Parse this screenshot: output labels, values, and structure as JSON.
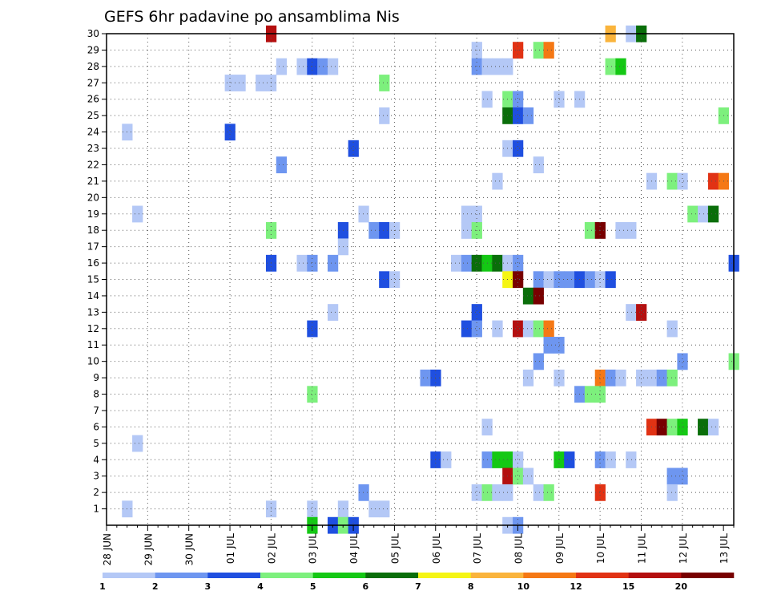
{
  "chart_data": {
    "type": "heatmap",
    "title": "GEFS 6hr padavine po ansamblima Nis",
    "xlabel": "",
    "ylabel": "",
    "x_tick_labels": [
      "28 JUN",
      "29 JUN",
      "30 JUN",
      "01 JUL",
      "02 JUL",
      "03 JUL",
      "04 JUL",
      "05 JUL",
      "06 JUL",
      "07 JUL",
      "08 JUL",
      "09 JUL",
      "10 JUL",
      "11 JUL",
      "12 JUL",
      "13 JUL"
    ],
    "x_range_hours": [
      0,
      366
    ],
    "x_step_hours": 6,
    "y_tick_labels": [
      "1",
      "2",
      "3",
      "4",
      "5",
      "6",
      "7",
      "8",
      "9",
      "10",
      "11",
      "12",
      "13",
      "14",
      "15",
      "16",
      "17",
      "18",
      "19",
      "20",
      "21",
      "22",
      "23",
      "24",
      "25",
      "26",
      "27",
      "28",
      "29",
      "30"
    ],
    "ylim": [
      0,
      30
    ],
    "grid": true,
    "color_levels": [
      1,
      2,
      3,
      4,
      5,
      6,
      7,
      8,
      10,
      12,
      15,
      20
    ],
    "colorbar_labels": [
      "1",
      "2",
      "3",
      "4",
      "5",
      "6",
      "7",
      "8",
      "10",
      "12",
      "15",
      "20"
    ],
    "color_palette": [
      "#b4c8f6",
      "#6e96f0",
      "#1f4fe0",
      "#7df07d",
      "#14c814",
      "#0a6e0a",
      "#f5f514",
      "#fab43c",
      "#f57814",
      "#e13214",
      "#b40f0f",
      "#780000"
    ],
    "cells": [
      {
        "x": 96,
        "y": 30,
        "v": 15
      },
      {
        "x": 294,
        "y": 30,
        "v": 8
      },
      {
        "x": 306,
        "y": 30,
        "v": 1
      },
      {
        "x": 312,
        "y": 30,
        "v": 6
      },
      {
        "x": 216,
        "y": 29,
        "v": 1
      },
      {
        "x": 240,
        "y": 29,
        "v": 12
      },
      {
        "x": 252,
        "y": 29,
        "v": 4
      },
      {
        "x": 258,
        "y": 29,
        "v": 10
      },
      {
        "x": 102,
        "y": 28,
        "v": 1
      },
      {
        "x": 114,
        "y": 28,
        "v": 1
      },
      {
        "x": 120,
        "y": 28,
        "v": 3
      },
      {
        "x": 126,
        "y": 28,
        "v": 2
      },
      {
        "x": 132,
        "y": 28,
        "v": 1
      },
      {
        "x": 216,
        "y": 28,
        "v": 2
      },
      {
        "x": 222,
        "y": 28,
        "v": 1
      },
      {
        "x": 228,
        "y": 28,
        "v": 1
      },
      {
        "x": 234,
        "y": 28,
        "v": 1
      },
      {
        "x": 294,
        "y": 28,
        "v": 4
      },
      {
        "x": 300,
        "y": 28,
        "v": 5
      },
      {
        "x": 72,
        "y": 27,
        "v": 1
      },
      {
        "x": 78,
        "y": 27,
        "v": 1
      },
      {
        "x": 90,
        "y": 27,
        "v": 1
      },
      {
        "x": 96,
        "y": 27,
        "v": 1
      },
      {
        "x": 162,
        "y": 27,
        "v": 4
      },
      {
        "x": 222,
        "y": 26,
        "v": 1
      },
      {
        "x": 234,
        "y": 26,
        "v": 4
      },
      {
        "x": 240,
        "y": 26,
        "v": 2
      },
      {
        "x": 264,
        "y": 26,
        "v": 1
      },
      {
        "x": 276,
        "y": 26,
        "v": 1
      },
      {
        "x": 162,
        "y": 25,
        "v": 1
      },
      {
        "x": 234,
        "y": 25,
        "v": 6
      },
      {
        "x": 240,
        "y": 25,
        "v": 3
      },
      {
        "x": 246,
        "y": 25,
        "v": 2
      },
      {
        "x": 360,
        "y": 25,
        "v": 4
      },
      {
        "x": 12,
        "y": 24,
        "v": 1
      },
      {
        "x": 72,
        "y": 24,
        "v": 3
      },
      {
        "x": 144,
        "y": 23,
        "v": 3
      },
      {
        "x": 234,
        "y": 23,
        "v": 1
      },
      {
        "x": 240,
        "y": 23,
        "v": 3
      },
      {
        "x": 102,
        "y": 22,
        "v": 2
      },
      {
        "x": 252,
        "y": 22,
        "v": 1
      },
      {
        "x": 228,
        "y": 21,
        "v": 1
      },
      {
        "x": 318,
        "y": 21,
        "v": 1
      },
      {
        "x": 330,
        "y": 21,
        "v": 4
      },
      {
        "x": 336,
        "y": 21,
        "v": 1
      },
      {
        "x": 354,
        "y": 21,
        "v": 14
      },
      {
        "x": 360,
        "y": 21,
        "v": 10
      },
      {
        "x": 18,
        "y": 19,
        "v": 1
      },
      {
        "x": 150,
        "y": 19,
        "v": 1
      },
      {
        "x": 210,
        "y": 19,
        "v": 1
      },
      {
        "x": 216,
        "y": 19,
        "v": 1
      },
      {
        "x": 342,
        "y": 19,
        "v": 4
      },
      {
        "x": 348,
        "y": 19,
        "v": 1
      },
      {
        "x": 354,
        "y": 19,
        "v": 6
      },
      {
        "x": 96,
        "y": 18,
        "v": 4
      },
      {
        "x": 138,
        "y": 18,
        "v": 3
      },
      {
        "x": 156,
        "y": 18,
        "v": 2
      },
      {
        "x": 162,
        "y": 18,
        "v": 3
      },
      {
        "x": 168,
        "y": 18,
        "v": 1
      },
      {
        "x": 210,
        "y": 18,
        "v": 1
      },
      {
        "x": 216,
        "y": 18,
        "v": 4
      },
      {
        "x": 282,
        "y": 18,
        "v": 4
      },
      {
        "x": 288,
        "y": 18,
        "v": 20
      },
      {
        "x": 300,
        "y": 18,
        "v": 1
      },
      {
        "x": 306,
        "y": 18,
        "v": 1
      },
      {
        "x": 138,
        "y": 17,
        "v": 1
      },
      {
        "x": 96,
        "y": 16,
        "v": 3
      },
      {
        "x": 114,
        "y": 16,
        "v": 1
      },
      {
        "x": 120,
        "y": 16,
        "v": 2
      },
      {
        "x": 132,
        "y": 16,
        "v": 2
      },
      {
        "x": 204,
        "y": 16,
        "v": 1
      },
      {
        "x": 210,
        "y": 16,
        "v": 2
      },
      {
        "x": 216,
        "y": 16,
        "v": 6
      },
      {
        "x": 222,
        "y": 16,
        "v": 5
      },
      {
        "x": 228,
        "y": 16,
        "v": 6
      },
      {
        "x": 234,
        "y": 16,
        "v": 1
      },
      {
        "x": 240,
        "y": 16,
        "v": 2
      },
      {
        "x": 366,
        "y": 16,
        "v": 3
      },
      {
        "x": 162,
        "y": 15,
        "v": 3
      },
      {
        "x": 168,
        "y": 15,
        "v": 1
      },
      {
        "x": 234,
        "y": 15,
        "v": 7
      },
      {
        "x": 240,
        "y": 15,
        "v": 20
      },
      {
        "x": 252,
        "y": 15,
        "v": 2
      },
      {
        "x": 258,
        "y": 15,
        "v": 1
      },
      {
        "x": 264,
        "y": 15,
        "v": 2
      },
      {
        "x": 270,
        "y": 15,
        "v": 2
      },
      {
        "x": 276,
        "y": 15,
        "v": 3
      },
      {
        "x": 282,
        "y": 15,
        "v": 2
      },
      {
        "x": 288,
        "y": 15,
        "v": 1
      },
      {
        "x": 294,
        "y": 15,
        "v": 3
      },
      {
        "x": 246,
        "y": 14,
        "v": 6
      },
      {
        "x": 252,
        "y": 14,
        "v": 20
      },
      {
        "x": 132,
        "y": 13,
        "v": 1
      },
      {
        "x": 216,
        "y": 13,
        "v": 3
      },
      {
        "x": 306,
        "y": 13,
        "v": 1
      },
      {
        "x": 312,
        "y": 13,
        "v": 15
      },
      {
        "x": 120,
        "y": 12,
        "v": 3
      },
      {
        "x": 210,
        "y": 12,
        "v": 3
      },
      {
        "x": 216,
        "y": 12,
        "v": 2
      },
      {
        "x": 228,
        "y": 12,
        "v": 1
      },
      {
        "x": 240,
        "y": 12,
        "v": 15
      },
      {
        "x": 246,
        "y": 12,
        "v": 1
      },
      {
        "x": 252,
        "y": 12,
        "v": 4
      },
      {
        "x": 258,
        "y": 12,
        "v": 10
      },
      {
        "x": 330,
        "y": 12,
        "v": 1
      },
      {
        "x": 258,
        "y": 11,
        "v": 2
      },
      {
        "x": 264,
        "y": 11,
        "v": 2
      },
      {
        "x": 252,
        "y": 10,
        "v": 2
      },
      {
        "x": 336,
        "y": 10,
        "v": 2
      },
      {
        "x": 366,
        "y": 10,
        "v": 4
      },
      {
        "x": 186,
        "y": 9,
        "v": 2
      },
      {
        "x": 192,
        "y": 9,
        "v": 3
      },
      {
        "x": 246,
        "y": 9,
        "v": 1
      },
      {
        "x": 264,
        "y": 9,
        "v": 1
      },
      {
        "x": 288,
        "y": 9,
        "v": 10
      },
      {
        "x": 294,
        "y": 9,
        "v": 2
      },
      {
        "x": 300,
        "y": 9,
        "v": 1
      },
      {
        "x": 312,
        "y": 9,
        "v": 1
      },
      {
        "x": 318,
        "y": 9,
        "v": 1
      },
      {
        "x": 324,
        "y": 9,
        "v": 2
      },
      {
        "x": 330,
        "y": 9,
        "v": 4
      },
      {
        "x": 120,
        "y": 8,
        "v": 4
      },
      {
        "x": 276,
        "y": 8,
        "v": 2
      },
      {
        "x": 282,
        "y": 8,
        "v": 4
      },
      {
        "x": 288,
        "y": 8,
        "v": 4
      },
      {
        "x": 222,
        "y": 6,
        "v": 1
      },
      {
        "x": 318,
        "y": 6,
        "v": 14
      },
      {
        "x": 324,
        "y": 6,
        "v": 20
      },
      {
        "x": 330,
        "y": 6,
        "v": 4
      },
      {
        "x": 336,
        "y": 6,
        "v": 5
      },
      {
        "x": 348,
        "y": 6,
        "v": 6
      },
      {
        "x": 354,
        "y": 6,
        "v": 1
      },
      {
        "x": 18,
        "y": 5,
        "v": 1
      },
      {
        "x": 192,
        "y": 4,
        "v": 3
      },
      {
        "x": 198,
        "y": 4,
        "v": 1
      },
      {
        "x": 222,
        "y": 4,
        "v": 2
      },
      {
        "x": 228,
        "y": 4,
        "v": 5
      },
      {
        "x": 234,
        "y": 4,
        "v": 5
      },
      {
        "x": 240,
        "y": 4,
        "v": 1
      },
      {
        "x": 264,
        "y": 4,
        "v": 5
      },
      {
        "x": 270,
        "y": 4,
        "v": 3
      },
      {
        "x": 288,
        "y": 4,
        "v": 2
      },
      {
        "x": 294,
        "y": 4,
        "v": 1
      },
      {
        "x": 306,
        "y": 4,
        "v": 1
      },
      {
        "x": 234,
        "y": 3,
        "v": 15
      },
      {
        "x": 240,
        "y": 3,
        "v": 4
      },
      {
        "x": 246,
        "y": 3,
        "v": 1
      },
      {
        "x": 330,
        "y": 3,
        "v": 2
      },
      {
        "x": 336,
        "y": 3,
        "v": 2
      },
      {
        "x": 150,
        "y": 2,
        "v": 2
      },
      {
        "x": 216,
        "y": 2,
        "v": 1
      },
      {
        "x": 222,
        "y": 2,
        "v": 4
      },
      {
        "x": 228,
        "y": 2,
        "v": 1
      },
      {
        "x": 234,
        "y": 2,
        "v": 1
      },
      {
        "x": 252,
        "y": 2,
        "v": 1
      },
      {
        "x": 258,
        "y": 2,
        "v": 4
      },
      {
        "x": 288,
        "y": 2,
        "v": 12
      },
      {
        "x": 330,
        "y": 2,
        "v": 1
      },
      {
        "x": 12,
        "y": 1,
        "v": 1
      },
      {
        "x": 96,
        "y": 1,
        "v": 1
      },
      {
        "x": 120,
        "y": 1,
        "v": 1
      },
      {
        "x": 138,
        "y": 1,
        "v": 1
      },
      {
        "x": 156,
        "y": 1,
        "v": 1
      },
      {
        "x": 162,
        "y": 1,
        "v": 1
      },
      {
        "x": 120,
        "y": 0,
        "v": 5
      },
      {
        "x": 132,
        "y": 0,
        "v": 3
      },
      {
        "x": 138,
        "y": 0,
        "v": 4
      },
      {
        "x": 144,
        "y": 0,
        "v": 3
      },
      {
        "x": 234,
        "y": 0,
        "v": 1
      },
      {
        "x": 240,
        "y": 0,
        "v": 2
      }
    ]
  }
}
